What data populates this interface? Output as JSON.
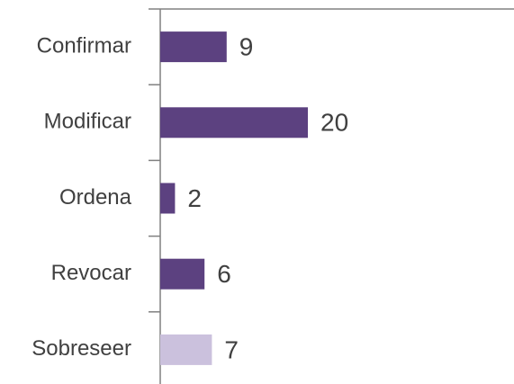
{
  "chart_data": {
    "type": "barh",
    "categories": [
      "Confirmar",
      "Modificar",
      "Ordena",
      "Revocar",
      "Sobreseer"
    ],
    "values": [
      9,
      20,
      2,
      6,
      7
    ],
    "colors": [
      "#5c4180",
      "#5c4180",
      "#5c4180",
      "#5c4180",
      "#cbc1dd"
    ],
    "xlim": [
      0,
      48
    ]
  }
}
